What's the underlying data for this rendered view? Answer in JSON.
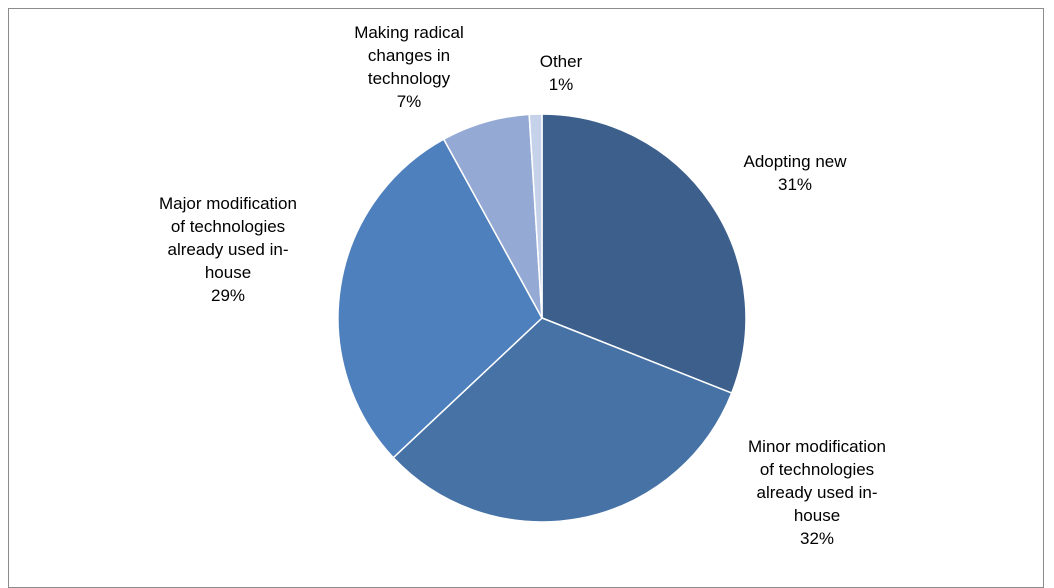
{
  "chart_data": {
    "type": "pie",
    "title": "",
    "slices": [
      {
        "label_lines": [
          "Adopting new"
        ],
        "pct_label": "31%",
        "value": 31,
        "color": "#3d5f8c"
      },
      {
        "label_lines": [
          "Minor modification",
          "of technologies",
          "already used in-",
          "house"
        ],
        "pct_label": "32%",
        "value": 32,
        "color": "#4672a6"
      },
      {
        "label_lines": [
          "Major modification",
          "of technologies",
          "already used in-",
          "house"
        ],
        "pct_label": "29%",
        "value": 29,
        "color": "#4e80bd"
      },
      {
        "label_lines": [
          "Making radical",
          "changes in",
          "technology"
        ],
        "pct_label": "7%",
        "value": 7,
        "color": "#94aad4"
      },
      {
        "label_lines": [
          "Other"
        ],
        "pct_label": "1%",
        "value": 1,
        "color": "#c6d2ea"
      }
    ],
    "start_angle": "12 o'clock",
    "direction": "clockwise",
    "legend": "none",
    "data_labels": "outside"
  }
}
